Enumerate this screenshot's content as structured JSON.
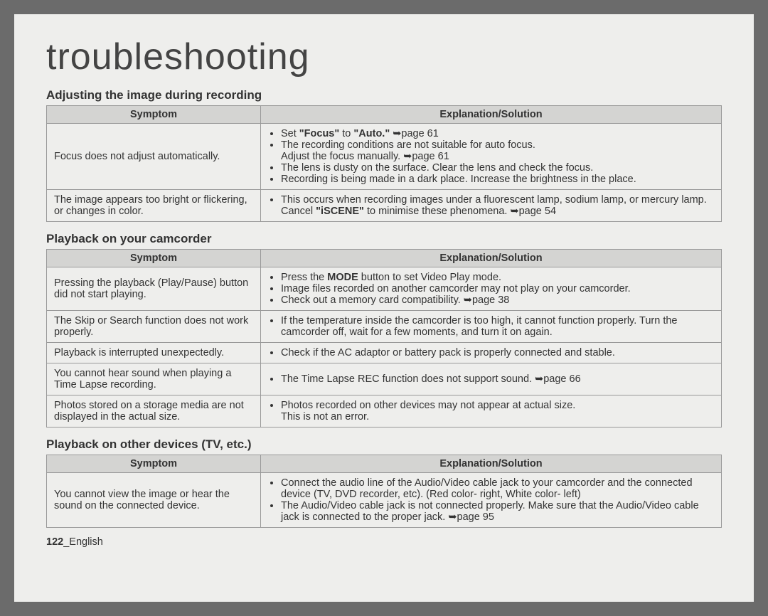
{
  "pageTitle": "troubleshooting",
  "footer": {
    "pageNum": "122",
    "separator": "_",
    "lang": "English"
  },
  "headers": {
    "symptom": "Symptom",
    "solution": "Explanation/Solution"
  },
  "arrow": "➥",
  "sections": [
    {
      "heading": "Adjusting the image during recording",
      "rows": [
        {
          "symptom": "Focus does not adjust automatically.",
          "solutions": [
            "Set <b>\"Focus\"</b> to <b>\"Auto.\"</b> ➥page 61",
            "The recording conditions are not suitable for auto focus.<br>Adjust the focus manually. ➥page 61",
            "The lens is dusty on the surface. Clear the lens and check the focus.",
            "Recording is being made in a dark place. Increase the brightness in the place."
          ]
        },
        {
          "symptom": "The image appears too bright or flickering, or changes in color.",
          "solutions": [
            "This occurs when recording images under a fluorescent lamp, sodium lamp, or mercury lamp.  Cancel <b>\"iSCENE\"</b> to minimise these phenomena. ➥page 54"
          ]
        }
      ]
    },
    {
      "heading": "Playback on your camcorder",
      "rows": [
        {
          "symptom": "Pressing the playback (Play/Pause) button did not start playing.",
          "solutions": [
            "Press the <b>MODE</b> button to set Video Play mode.",
            "Image files recorded on another camcorder may not play on your camcorder.",
            "Check out a memory card compatibility. ➥page 38"
          ]
        },
        {
          "symptom": "The Skip or Search function does not work properly.",
          "solutions": [
            "If the temperature inside the camcorder is too high, it cannot function properly. Turn the camcorder off, wait for a few moments, and turn it on again."
          ]
        },
        {
          "symptom": "Playback is interrupted unexpectedly.",
          "solutions": [
            "Check if the AC adaptor or battery pack is properly connected and stable."
          ]
        },
        {
          "symptom": "You cannot hear sound when playing a Time Lapse recording.",
          "solutions": [
            "The Time Lapse REC function does not support sound. ➥page 66"
          ]
        },
        {
          "symptom": "Photos stored on a storage media are not displayed in the actual size.",
          "solutions": [
            "Photos recorded on other devices may not appear at actual size.<br>This is not an error."
          ]
        }
      ]
    },
    {
      "heading": "Playback on other devices (TV, etc.)",
      "rows": [
        {
          "symptom": "You cannot view the image or hear the sound on the connected device.",
          "solutions": [
            "Connect the audio line of the Audio/Video cable jack to your camcorder and the connected device (TV, DVD recorder, etc). (Red color- right, White color- left)",
            "The Audio/Video cable jack is not connected properly. Make sure that the Audio/Video cable jack is connected to the proper jack. ➥page 95"
          ]
        }
      ]
    }
  ]
}
